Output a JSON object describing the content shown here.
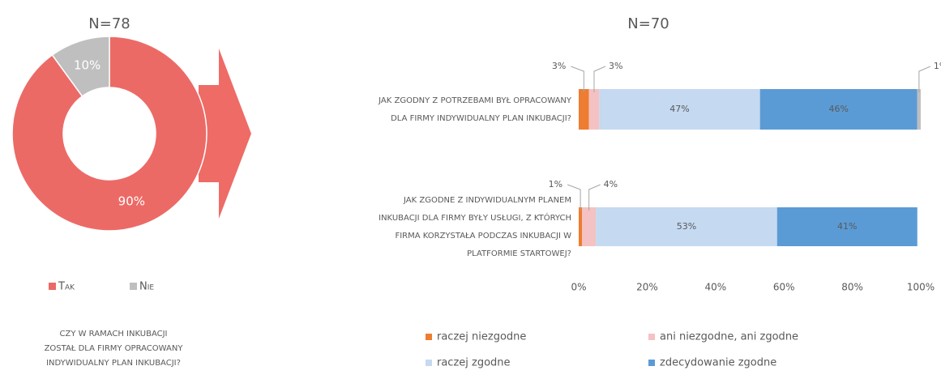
{
  "chart_data": [
    {
      "type": "donut",
      "title": "N=78",
      "categories": [
        "Tak",
        "Nie"
      ],
      "values": [
        90,
        10
      ],
      "value_labels": [
        "90%",
        "10%"
      ],
      "colors": [
        "#ec6a66",
        "#bfbfbf"
      ],
      "legend": "bottom",
      "question": [
        "CZY W RAMACH INKUBACJI",
        "ZOSTAŁ DLA FIRMY OPRACOWANY",
        "INDYWIDUALNY PLAN INKUBACJI?"
      ]
    },
    {
      "type": "stacked-barh",
      "title": "N=70",
      "categories": [
        [
          "JAK ZGODNY Z POTRZEBAMI BYŁ OPRACOWANY",
          "DLA FIRMY INDYWIDUALNY PLAN INKUBACJI?"
        ],
        [
          "JAK ZGODNE Z INDYWIDUALNYM PLANEM",
          "INKUBACJI DLA FIRMY BYŁY USŁUGI, Z KTÓRYCH",
          "FIRMA KORZYSTAŁA PODCZAS INKUBACJI W",
          "PLATFORMIE STARTOWEJ?"
        ]
      ],
      "series": [
        {
          "name": "raczej niezgodne",
          "color": "#ed7d31",
          "values": [
            3,
            1
          ],
          "value_labels": [
            "3%",
            "1%"
          ]
        },
        {
          "name": "ani niezgodne, ani zgodne",
          "color": "#f4c2c2",
          "values": [
            3,
            4
          ],
          "value_labels": [
            "3%",
            "4%"
          ]
        },
        {
          "name": "raczej zgodne",
          "color": "#c5d9f1",
          "values": [
            47,
            53
          ],
          "value_labels": [
            "47%",
            "53%"
          ]
        },
        {
          "name": "zdecydowanie zgodne",
          "color": "#5b9bd5",
          "values": [
            46,
            41
          ],
          "value_labels": [
            "46%",
            "41%"
          ]
        },
        {
          "color": "#bfbfbf",
          "values": [
            1,
            null
          ],
          "value_labels": [
            "1%",
            null
          ]
        }
      ],
      "xlim": [
        0,
        100
      ],
      "xticks": [
        {
          "value": 0,
          "label": "0%"
        },
        {
          "value": 20,
          "label": "20%"
        },
        {
          "value": 40,
          "label": "40%"
        },
        {
          "value": 60,
          "label": "60%"
        },
        {
          "value": 80,
          "label": "80%"
        },
        {
          "value": 100,
          "label": "100%"
        }
      ],
      "legend": "bottom"
    }
  ]
}
